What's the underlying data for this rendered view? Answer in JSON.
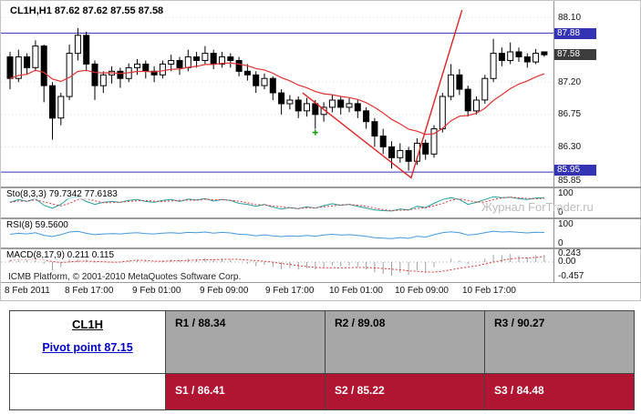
{
  "chart": {
    "title": "CL1H,H1 87.62 87.62 87.55 87.58",
    "watermark": "Журнал ForTrader.ru",
    "copyright": "ICMB Platform, © 2001-2010 MetaQuotes Software Corp.",
    "price_axis": [
      "88.10",
      "87.20",
      "86.75",
      "86.30",
      "85.85"
    ],
    "levels": {
      "r_line": "87.88",
      "current": "87.58",
      "s_line": "85.95"
    },
    "time_axis": [
      "8 Feb 2011",
      "8 Feb 17:00",
      "9 Feb 01:00",
      "9 Feb 09:00",
      "9 Feb 17:00",
      "10 Feb 01:00",
      "10 Feb 09:00",
      "10 Feb 17:00"
    ],
    "colors": {
      "level_line": "#3333b4",
      "current_badge": "#3c3c3c",
      "up_body": "#ffffff",
      "down_body": "#000000",
      "ma_line": "#e03232",
      "trend_line": "#dd2222",
      "sto_main": "#20a0a0",
      "sto_signal": "#e03232",
      "rsi_line": "#4499dd",
      "macd_hist": "#a0a0a0",
      "macd_signal": "#e03232",
      "grid": "#d4d4d4"
    }
  },
  "chart_data": {
    "type": "candlestick",
    "symbol": "CL1H",
    "timeframe": "H1",
    "ohlc_current": {
      "open": "87.62",
      "high": "87.62",
      "low": "87.55",
      "close": "87.58"
    },
    "price_range": {
      "min": 85.8,
      "max": 88.1
    },
    "candles": [
      [
        87.55,
        87.62,
        87.1,
        87.25
      ],
      [
        87.25,
        87.65,
        87.2,
        87.55
      ],
      [
        87.55,
        87.6,
        87.3,
        87.4
      ],
      [
        87.4,
        87.78,
        87.35,
        87.7
      ],
      [
        87.7,
        87.72,
        86.92,
        87.15
      ],
      [
        87.15,
        87.2,
        86.4,
        86.7
      ],
      [
        86.7,
        87.05,
        86.6,
        87.0
      ],
      [
        87.0,
        87.72,
        86.95,
        87.6
      ],
      [
        87.6,
        87.95,
        87.5,
        87.85
      ],
      [
        87.85,
        87.9,
        87.35,
        87.45
      ],
      [
        87.45,
        87.5,
        86.95,
        87.15
      ],
      [
        87.15,
        87.35,
        87.05,
        87.3
      ],
      [
        87.3,
        87.42,
        87.18,
        87.35
      ],
      [
        87.35,
        87.4,
        87.12,
        87.25
      ],
      [
        87.25,
        87.46,
        87.2,
        87.4
      ],
      [
        87.4,
        87.52,
        87.3,
        87.45
      ],
      [
        87.45,
        87.5,
        87.25,
        87.35
      ],
      [
        87.35,
        87.42,
        87.2,
        87.3
      ],
      [
        87.3,
        87.5,
        87.25,
        87.45
      ],
      [
        87.45,
        87.58,
        87.35,
        87.5
      ],
      [
        87.5,
        87.55,
        87.3,
        87.4
      ],
      [
        87.4,
        87.65,
        87.35,
        87.55
      ],
      [
        87.55,
        87.62,
        87.4,
        87.5
      ],
      [
        87.5,
        87.7,
        87.45,
        87.6
      ],
      [
        87.6,
        87.65,
        87.38,
        87.45
      ],
      [
        87.45,
        87.62,
        87.4,
        87.55
      ],
      [
        87.55,
        87.6,
        87.4,
        87.5
      ],
      [
        87.5,
        87.55,
        87.28,
        87.35
      ],
      [
        87.35,
        87.45,
        87.22,
        87.3
      ],
      [
        87.3,
        87.35,
        87.05,
        87.15
      ],
      [
        87.15,
        87.32,
        87.1,
        87.25
      ],
      [
        87.25,
        87.28,
        86.95,
        87.05
      ],
      [
        87.05,
        87.1,
        86.75,
        86.9
      ],
      [
        86.9,
        87.02,
        86.82,
        86.95
      ],
      [
        86.95,
        87.0,
        86.7,
        86.8
      ],
      [
        86.8,
        86.98,
        86.72,
        86.9
      ],
      [
        86.9,
        86.95,
        86.55,
        86.75
      ],
      [
        86.75,
        86.92,
        86.65,
        86.85
      ],
      [
        86.85,
        87.02,
        86.78,
        86.95
      ],
      [
        86.95,
        87.0,
        86.75,
        86.85
      ],
      [
        86.85,
        86.98,
        86.78,
        86.9
      ],
      [
        86.9,
        86.95,
        86.7,
        86.8
      ],
      [
        86.8,
        86.85,
        86.55,
        86.65
      ],
      [
        86.65,
        86.7,
        86.3,
        86.45
      ],
      [
        86.45,
        86.55,
        86.2,
        86.3
      ],
      [
        86.3,
        86.38,
        86.0,
        86.15
      ],
      [
        86.15,
        86.35,
        86.08,
        86.25
      ],
      [
        86.25,
        86.3,
        85.97,
        86.1
      ],
      [
        86.1,
        86.42,
        86.05,
        86.35
      ],
      [
        86.35,
        86.4,
        86.12,
        86.2
      ],
      [
        86.2,
        86.6,
        86.15,
        86.55
      ],
      [
        86.55,
        87.05,
        86.5,
        87.0
      ],
      [
        87.0,
        87.45,
        86.95,
        87.3
      ],
      [
        87.3,
        87.38,
        87.02,
        87.1
      ],
      [
        87.1,
        87.15,
        86.72,
        86.8
      ],
      [
        86.8,
        87.0,
        86.75,
        86.95
      ],
      [
        86.95,
        87.3,
        86.9,
        87.25
      ],
      [
        87.25,
        87.8,
        87.2,
        87.6
      ],
      [
        87.6,
        87.68,
        87.42,
        87.5
      ],
      [
        87.5,
        87.75,
        87.45,
        87.62
      ],
      [
        87.62,
        87.68,
        87.48,
        87.55
      ],
      [
        87.55,
        87.6,
        87.4,
        87.48
      ],
      [
        87.48,
        87.66,
        87.45,
        87.6
      ],
      [
        87.62,
        87.62,
        87.55,
        87.58
      ]
    ],
    "trendline": [
      [
        34.5,
        87.05
      ],
      [
        47.3,
        85.87
      ],
      [
        53.3,
        88.2
      ]
    ],
    "marker": {
      "index": 36,
      "price": 86.5,
      "color": "#00a000"
    },
    "indicators": {
      "stochastic": {
        "label": "Sto(8,3,3) 79.7342 77.6183",
        "axis": [
          "100",
          "0"
        ],
        "values": [
          55,
          70,
          60,
          75,
          40,
          25,
          45,
          80,
          85,
          60,
          45,
          55,
          60,
          55,
          65,
          70,
          60,
          55,
          65,
          70,
          60,
          72,
          68,
          75,
          62,
          70,
          65,
          50,
          45,
          35,
          45,
          30,
          20,
          28,
          22,
          32,
          25,
          38,
          48,
          40,
          45,
          35,
          25,
          15,
          12,
          10,
          20,
          15,
          35,
          28,
          50,
          70,
          80,
          70,
          45,
          55,
          70,
          85,
          80,
          82,
          75,
          70,
          78,
          79.7
        ]
      },
      "rsi": {
        "label": "RSI(8) 59.5600",
        "axis": [
          "100",
          "0"
        ],
        "values": [
          50,
          55,
          52,
          58,
          45,
          38,
          48,
          62,
          65,
          55,
          48,
          52,
          54,
          52,
          56,
          58,
          54,
          52,
          56,
          58,
          55,
          60,
          58,
          62,
          56,
          60,
          57,
          50,
          48,
          42,
          47,
          42,
          38,
          42,
          39,
          44,
          40,
          46,
          50,
          46,
          48,
          44,
          39,
          32,
          30,
          27,
          33,
          29,
          40,
          35,
          48,
          58,
          63,
          58,
          46,
          50,
          58,
          66,
          62,
          64,
          60,
          57,
          61,
          59.56
        ]
      },
      "macd": {
        "label": "MACD(8,17,9) 0.211 0.115",
        "axis": {
          "max": "0.243",
          "zero": "0.00",
          "min": "-0.457"
        },
        "values": [
          0.05,
          0.1,
          0.08,
          0.15,
          -0.05,
          -0.25,
          -0.15,
          0.1,
          0.2,
          0.1,
          -0.02,
          0.0,
          0.02,
          0.0,
          0.04,
          0.06,
          0.04,
          0.02,
          0.05,
          0.08,
          0.06,
          0.1,
          0.09,
          0.12,
          0.08,
          0.1,
          0.07,
          0.0,
          -0.05,
          -0.12,
          -0.08,
          -0.15,
          -0.22,
          -0.18,
          -0.22,
          -0.18,
          -0.22,
          -0.15,
          -0.1,
          -0.12,
          -0.1,
          -0.15,
          -0.22,
          -0.3,
          -0.35,
          -0.4,
          -0.32,
          -0.38,
          -0.25,
          -0.3,
          -0.15,
          0.0,
          0.1,
          0.05,
          -0.05,
          0.0,
          0.1,
          0.22,
          0.2,
          0.24,
          0.18,
          0.15,
          0.2,
          0.211
        ]
      }
    }
  },
  "pivot_table": {
    "symbol": "CL1H",
    "pivot_label": "Pivot point 87.15",
    "resistances": [
      "R1 / 88.34",
      "R2 / 89.08",
      "R3 / 90.27"
    ],
    "supports": [
      "S1 / 86.41",
      "S2 / 85.22",
      "S3 / 84.48"
    ],
    "colors": {
      "resistance_bg": "#a7a7a7",
      "support_bg": "#b01532",
      "support_text": "#ffffff"
    }
  }
}
